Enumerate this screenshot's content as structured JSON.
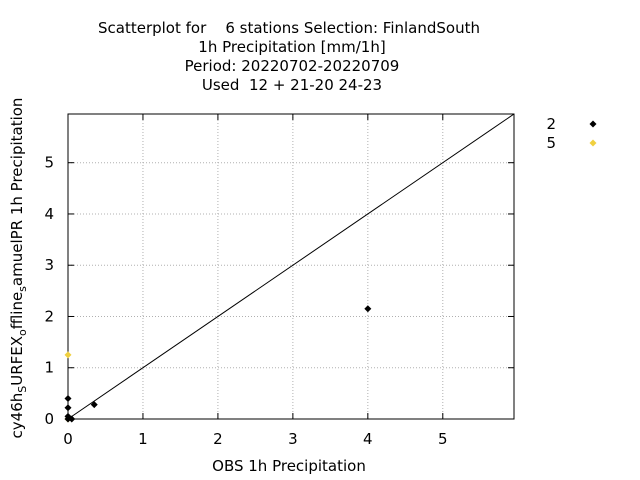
{
  "chart_data": {
    "type": "scatter",
    "title_lines": [
      "Scatterplot for    6 stations Selection: FinlandSouth",
      "1h Precipitation [mm/1h]",
      "Period: 20220702-20220709",
      "Used  12 + 21-20 24-23"
    ],
    "xlabel": "OBS 1h Precipitation",
    "ylabel": "cy46h_SURFEX_offline_samuelPR 1h Precipitation",
    "ylabel_parts": {
      "a": "cy46h",
      "a_sub": "S",
      "b": "URFEX",
      "b_sub": "o",
      "c": "ffline",
      "c_sub": "s",
      "d": "amuelPR 1h Precipitation"
    },
    "xlim": [
      0,
      5.95
    ],
    "ylim": [
      0,
      5.95
    ],
    "x_ticks": [
      0,
      1,
      2,
      3,
      4,
      5
    ],
    "y_ticks": [
      0,
      1,
      2,
      3,
      4,
      5
    ],
    "grid": true,
    "legend_position": "right",
    "diagonal_line": true,
    "series": [
      {
        "name": "2",
        "color": "#000000",
        "marker": "diamond",
        "points": [
          [
            0,
            0
          ],
          [
            0,
            0.05
          ],
          [
            0,
            0.22
          ],
          [
            0,
            0.4
          ],
          [
            0.05,
            0
          ],
          [
            0.35,
            0.28
          ],
          [
            4.0,
            2.15
          ]
        ]
      },
      {
        "name": "5",
        "color": "#f0d040",
        "marker": "diamond",
        "points": [
          [
            0,
            1.25
          ],
          [
            0,
            0
          ]
        ]
      }
    ]
  }
}
